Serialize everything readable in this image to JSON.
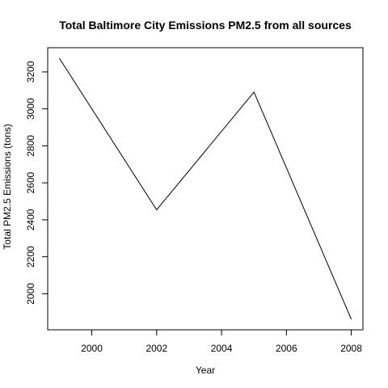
{
  "chart_data": {
    "type": "line",
    "title": "Total Baltimore City Emissions PM2.5 from all sources",
    "xlabel": "Year",
    "ylabel": "Total PM2.5 Emissions (tons)",
    "x": [
      1999,
      2002,
      2005,
      2008
    ],
    "series": [
      {
        "values": [
          3274,
          2454,
          3091,
          1862
        ]
      }
    ],
    "xlim": [
      1998.64,
      2008.36
    ],
    "ylim": [
      1805,
      3331
    ],
    "xticks": [
      2000,
      2002,
      2004,
      2006,
      2008
    ],
    "yticks": [
      2000,
      2200,
      2400,
      2600,
      2800,
      3000,
      3200
    ],
    "xtick_labels": [
      "2000",
      "2002",
      "2004",
      "2006",
      "2008"
    ],
    "ytick_labels": [
      "2000",
      "2200",
      "2400",
      "2600",
      "2800",
      "3000",
      "3200"
    ],
    "grid": false,
    "line_color": "#000000"
  }
}
